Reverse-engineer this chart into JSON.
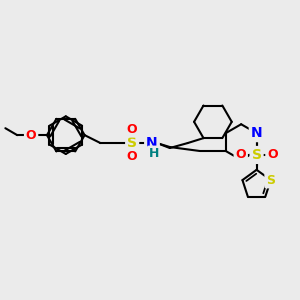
{
  "bg_color": "#ebebeb",
  "bond_color": "#000000",
  "bond_width": 1.5,
  "atom_colors": {
    "O": "#ff0000",
    "N": "#0000ff",
    "S": "#cccc00",
    "H": "#008080",
    "C": "#000000"
  },
  "font_size_atom": 9,
  "fig_bg": "#ebebeb",
  "scale": 22
}
